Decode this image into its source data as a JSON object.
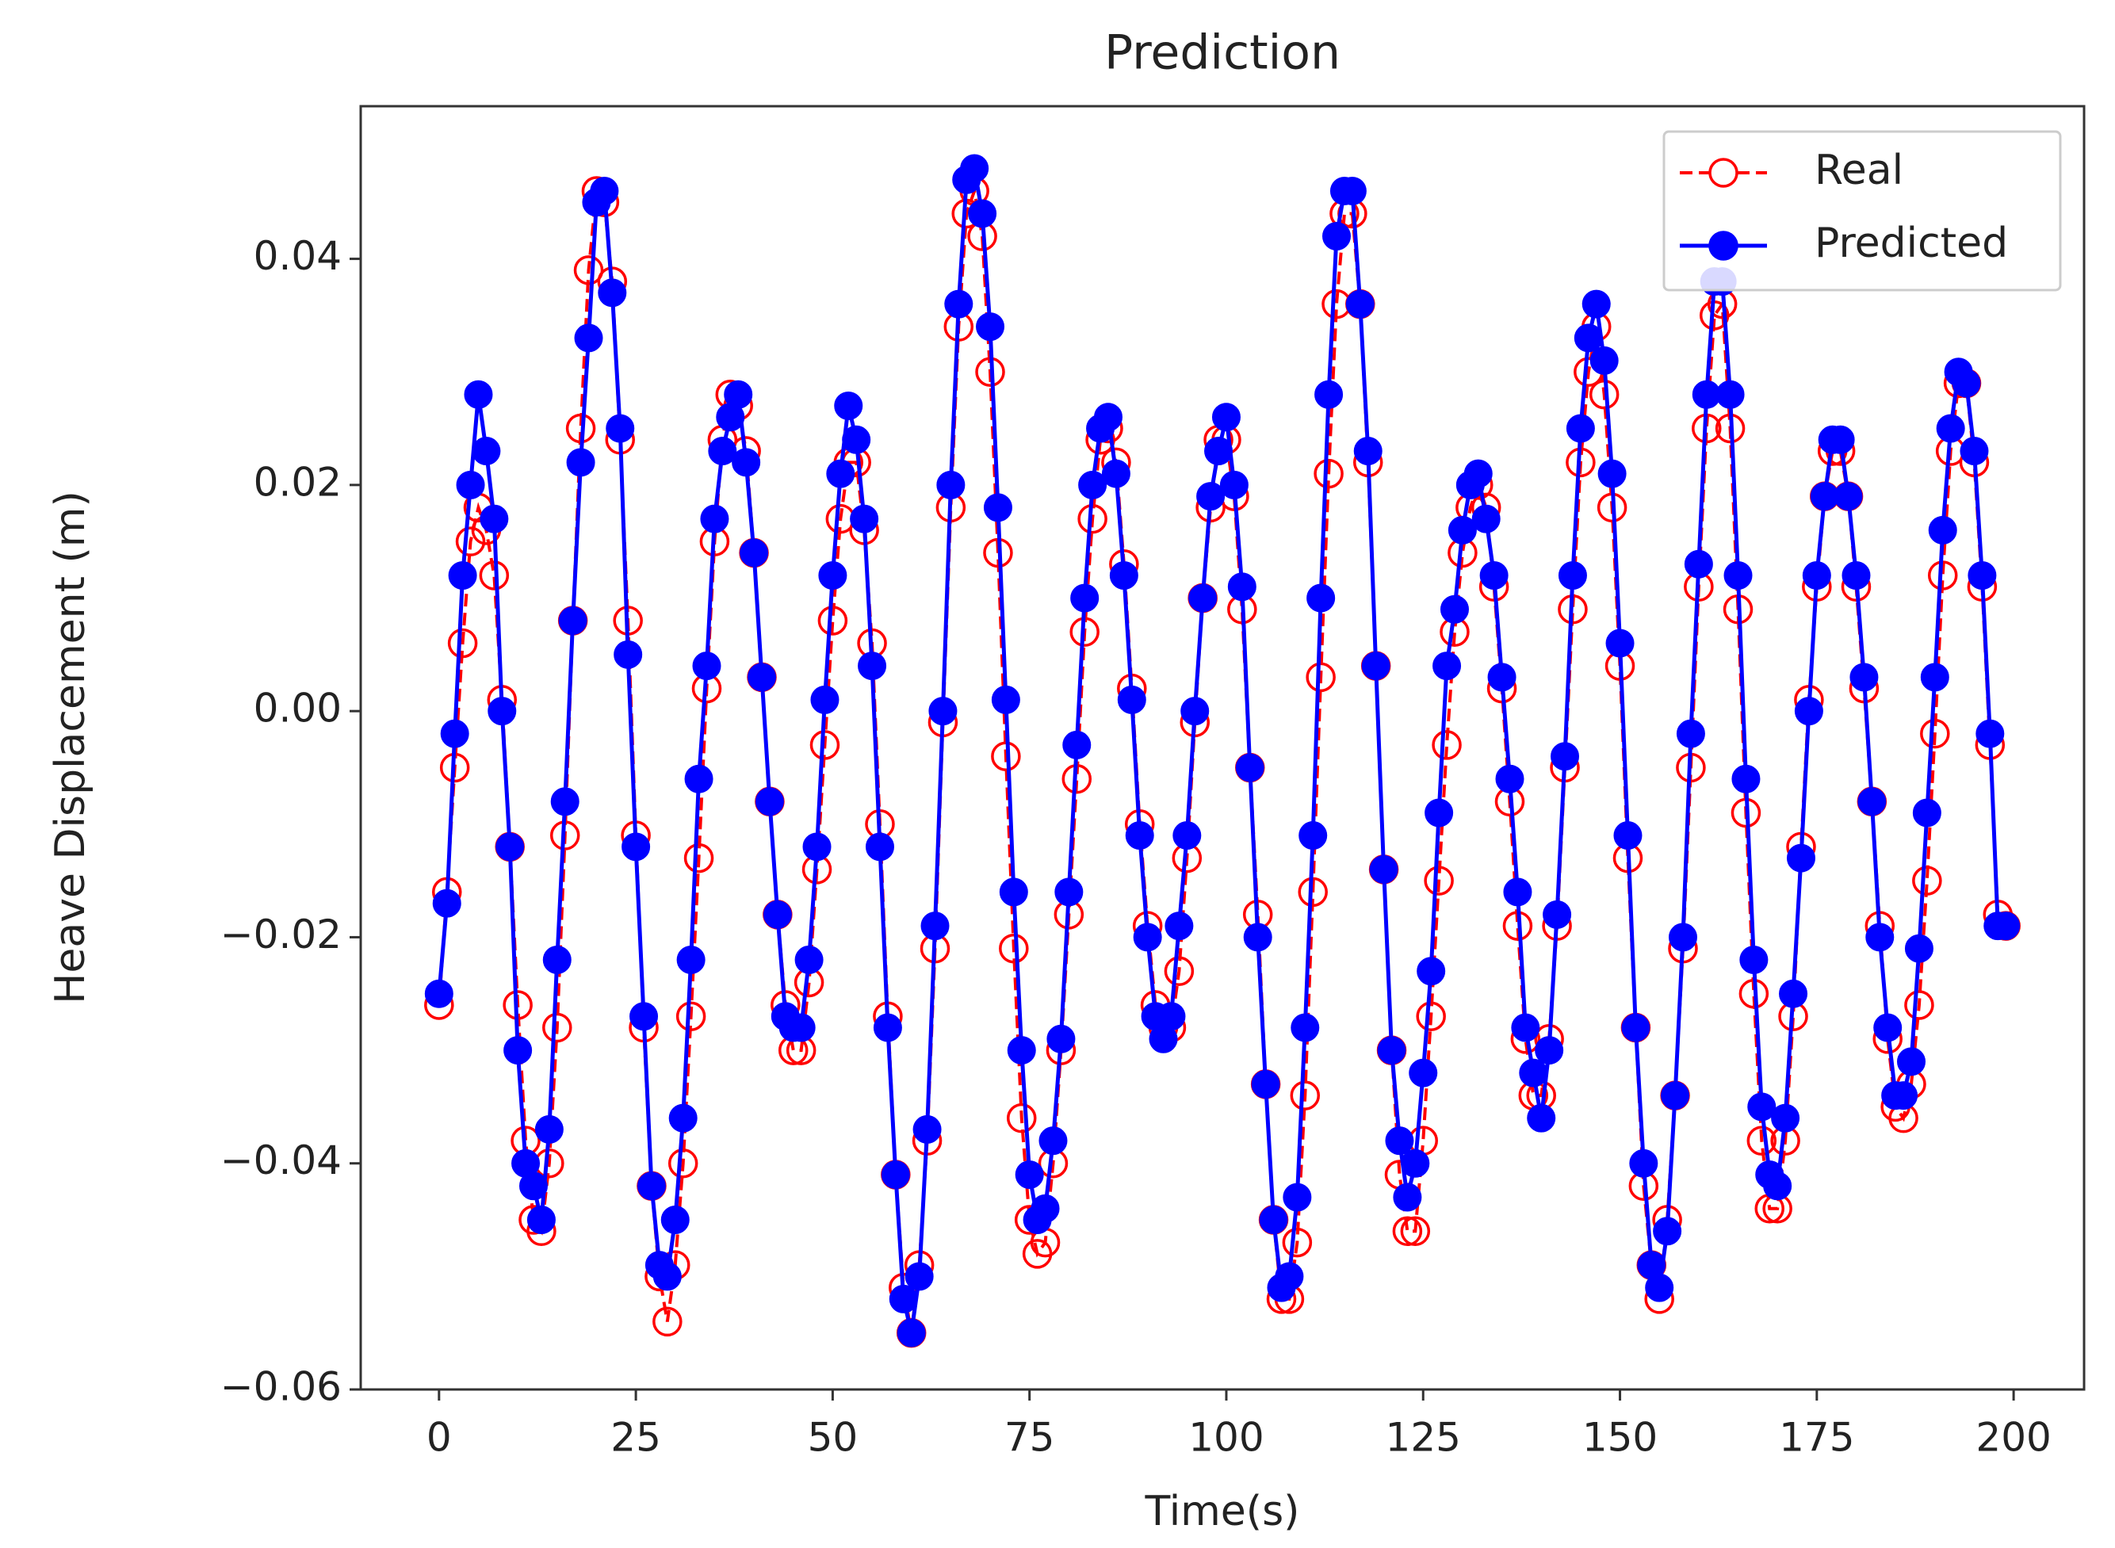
{
  "chart_data": {
    "type": "line",
    "title": "Prediction",
    "x_label": "Time(s)",
    "y_label": "Heave Displacement (m)",
    "x": [
      0,
      1,
      2,
      3,
      4,
      5,
      6,
      7,
      8,
      9,
      10,
      11,
      12,
      13,
      14,
      15,
      16,
      17,
      18,
      19,
      20,
      21,
      22,
      23,
      24,
      25,
      26,
      27,
      28,
      29,
      30,
      31,
      32,
      33,
      34,
      35,
      36,
      37,
      38,
      39,
      40,
      41,
      42,
      43,
      44,
      45,
      46,
      47,
      48,
      49,
      50,
      51,
      52,
      53,
      54,
      55,
      56,
      57,
      58,
      59,
      60,
      61,
      62,
      63,
      64,
      65,
      66,
      67,
      68,
      69,
      70,
      71,
      72,
      73,
      74,
      75,
      76,
      77,
      78,
      79,
      80,
      81,
      82,
      83,
      84,
      85,
      86,
      87,
      88,
      89,
      90,
      91,
      92,
      93,
      94,
      95,
      96,
      97,
      98,
      99,
      100,
      101,
      102,
      103,
      104,
      105,
      106,
      107,
      108,
      109,
      110,
      111,
      112,
      113,
      114,
      115,
      116,
      117,
      118,
      119,
      120,
      121,
      122,
      123,
      124,
      125,
      126,
      127,
      128,
      129,
      130,
      131,
      132,
      133,
      134,
      135,
      136,
      137,
      138,
      139,
      140,
      141,
      142,
      143,
      144,
      145,
      146,
      147,
      148,
      149,
      150,
      151,
      152,
      153,
      154,
      155,
      156,
      157,
      158,
      159,
      160,
      161,
      162,
      163,
      164,
      165,
      166,
      167,
      168,
      169,
      170,
      171,
      172,
      173,
      174,
      175,
      176,
      177,
      178,
      179,
      180,
      181,
      182,
      183,
      184,
      185,
      186,
      187,
      188,
      189,
      190,
      191,
      192,
      193,
      194,
      195,
      196,
      197,
      198,
      199
    ],
    "series": [
      {
        "name": "Real",
        "color": "#ff0000",
        "values": [
          -0.026,
          -0.016,
          -0.005,
          0.006,
          0.015,
          0.018,
          0.016,
          0.012,
          0.001,
          -0.012,
          -0.026,
          -0.038,
          -0.045,
          -0.046,
          -0.04,
          -0.028,
          -0.011,
          0.008,
          0.025,
          0.039,
          0.046,
          0.045,
          0.038,
          0.024,
          0.008,
          -0.011,
          -0.028,
          -0.042,
          -0.05,
          -0.054,
          -0.049,
          -0.04,
          -0.027,
          -0.013,
          0.002,
          0.015,
          0.024,
          0.028,
          0.027,
          0.023,
          0.014,
          0.003,
          -0.008,
          -0.018,
          -0.026,
          -0.03,
          -0.03,
          -0.024,
          -0.014,
          -0.003,
          0.008,
          0.017,
          0.022,
          0.022,
          0.016,
          0.006,
          -0.01,
          -0.027,
          -0.041,
          -0.051,
          -0.055,
          -0.049,
          -0.038,
          -0.021,
          -0.001,
          0.018,
          0.034,
          0.044,
          0.046,
          0.042,
          0.03,
          0.014,
          -0.004,
          -0.021,
          -0.036,
          -0.045,
          -0.048,
          -0.047,
          -0.04,
          -0.03,
          -0.018,
          -0.006,
          0.007,
          0.017,
          0.024,
          0.025,
          0.022,
          0.013,
          0.002,
          -0.01,
          -0.019,
          -0.026,
          -0.028,
          -0.028,
          -0.023,
          -0.013,
          -0.001,
          0.01,
          0.018,
          0.024,
          0.024,
          0.019,
          0.009,
          -0.005,
          -0.018,
          -0.033,
          -0.045,
          -0.052,
          -0.052,
          -0.047,
          -0.034,
          -0.016,
          0.003,
          0.021,
          0.036,
          0.044,
          0.044,
          0.036,
          0.022,
          0.004,
          -0.014,
          -0.03,
          -0.041,
          -0.046,
          -0.046,
          -0.038,
          -0.027,
          -0.015,
          -0.003,
          0.007,
          0.014,
          0.018,
          0.02,
          0.018,
          0.011,
          0.002,
          -0.008,
          -0.019,
          -0.029,
          -0.034,
          -0.034,
          -0.029,
          -0.019,
          -0.005,
          0.009,
          0.022,
          0.03,
          0.034,
          0.028,
          0.018,
          0.004,
          -0.013,
          -0.028,
          -0.042,
          -0.049,
          -0.052,
          -0.045,
          -0.034,
          -0.021,
          -0.005,
          0.011,
          0.025,
          0.035,
          0.036,
          0.025,
          0.009,
          -0.009,
          -0.025,
          -0.038,
          -0.044,
          -0.044,
          -0.038,
          -0.027,
          -0.012,
          0.001,
          0.011,
          0.019,
          0.023,
          0.023,
          0.019,
          0.011,
          0.002,
          -0.008,
          -0.019,
          -0.029,
          -0.035,
          -0.036,
          -0.033,
          -0.026,
          -0.015,
          -0.002,
          0.012,
          0.023,
          0.029,
          0.029,
          0.022,
          0.011,
          -0.003,
          -0.018,
          -0.019
        ]
      },
      {
        "name": "Predicted",
        "color": "#0000ff",
        "values": [
          -0.025,
          -0.017,
          -0.002,
          0.012,
          0.02,
          0.028,
          0.023,
          0.017,
          0.0,
          -0.012,
          -0.03,
          -0.04,
          -0.042,
          -0.045,
          -0.037,
          -0.022,
          -0.008,
          0.008,
          0.022,
          0.033,
          0.045,
          0.046,
          0.037,
          0.025,
          0.005,
          -0.012,
          -0.027,
          -0.042,
          -0.049,
          -0.05,
          -0.045,
          -0.036,
          -0.022,
          -0.006,
          0.004,
          0.017,
          0.023,
          0.026,
          0.028,
          0.022,
          0.014,
          0.003,
          -0.008,
          -0.018,
          -0.027,
          -0.028,
          -0.028,
          -0.022,
          -0.012,
          0.001,
          0.012,
          0.021,
          0.027,
          0.024,
          0.017,
          0.004,
          -0.012,
          -0.028,
          -0.041,
          -0.052,
          -0.055,
          -0.05,
          -0.037,
          -0.019,
          0.0,
          0.02,
          0.036,
          0.047,
          0.048,
          0.044,
          0.034,
          0.018,
          0.001,
          -0.016,
          -0.03,
          -0.041,
          -0.045,
          -0.044,
          -0.038,
          -0.029,
          -0.016,
          -0.003,
          0.01,
          0.02,
          0.025,
          0.026,
          0.021,
          0.012,
          0.001,
          -0.011,
          -0.02,
          -0.027,
          -0.029,
          -0.027,
          -0.019,
          -0.011,
          0.0,
          0.01,
          0.019,
          0.023,
          0.026,
          0.02,
          0.011,
          -0.005,
          -0.02,
          -0.033,
          -0.045,
          -0.051,
          -0.05,
          -0.043,
          -0.028,
          -0.011,
          0.01,
          0.028,
          0.042,
          0.046,
          0.046,
          0.036,
          0.023,
          0.004,
          -0.014,
          -0.03,
          -0.038,
          -0.043,
          -0.04,
          -0.032,
          -0.023,
          -0.009,
          0.004,
          0.009,
          0.016,
          0.02,
          0.021,
          0.017,
          0.012,
          0.003,
          -0.006,
          -0.016,
          -0.028,
          -0.032,
          -0.036,
          -0.03,
          -0.018,
          -0.004,
          0.012,
          0.025,
          0.033,
          0.036,
          0.031,
          0.021,
          0.006,
          -0.011,
          -0.028,
          -0.04,
          -0.049,
          -0.051,
          -0.046,
          -0.034,
          -0.02,
          -0.002,
          0.013,
          0.028,
          0.038,
          0.038,
          0.028,
          0.012,
          -0.006,
          -0.022,
          -0.035,
          -0.041,
          -0.042,
          -0.036,
          -0.025,
          -0.013,
          0.0,
          0.012,
          0.019,
          0.024,
          0.024,
          0.019,
          0.012,
          0.003,
          -0.008,
          -0.02,
          -0.028,
          -0.034,
          -0.034,
          -0.031,
          -0.021,
          -0.009,
          0.003,
          0.016,
          0.025,
          0.03,
          0.029,
          0.023,
          0.012,
          -0.002,
          -0.019,
          -0.019
        ]
      }
    ],
    "xlim": [
      -9.95,
      208.95
    ],
    "ylim": [
      -0.06,
      0.0535
    ],
    "xticks": [
      0,
      25,
      50,
      75,
      100,
      125,
      150,
      175,
      200
    ],
    "yticks": [
      {
        "value": -0.06,
        "label": "−0.06"
      },
      {
        "value": -0.04,
        "label": "−0.04"
      },
      {
        "value": -0.02,
        "label": "−0.02"
      },
      {
        "value": 0,
        "label": "0.00"
      },
      {
        "value": 0.02,
        "label": "0.02"
      },
      {
        "value": 0.04,
        "label": "0.04"
      }
    ],
    "legend": "upper right",
    "grid": false
  }
}
